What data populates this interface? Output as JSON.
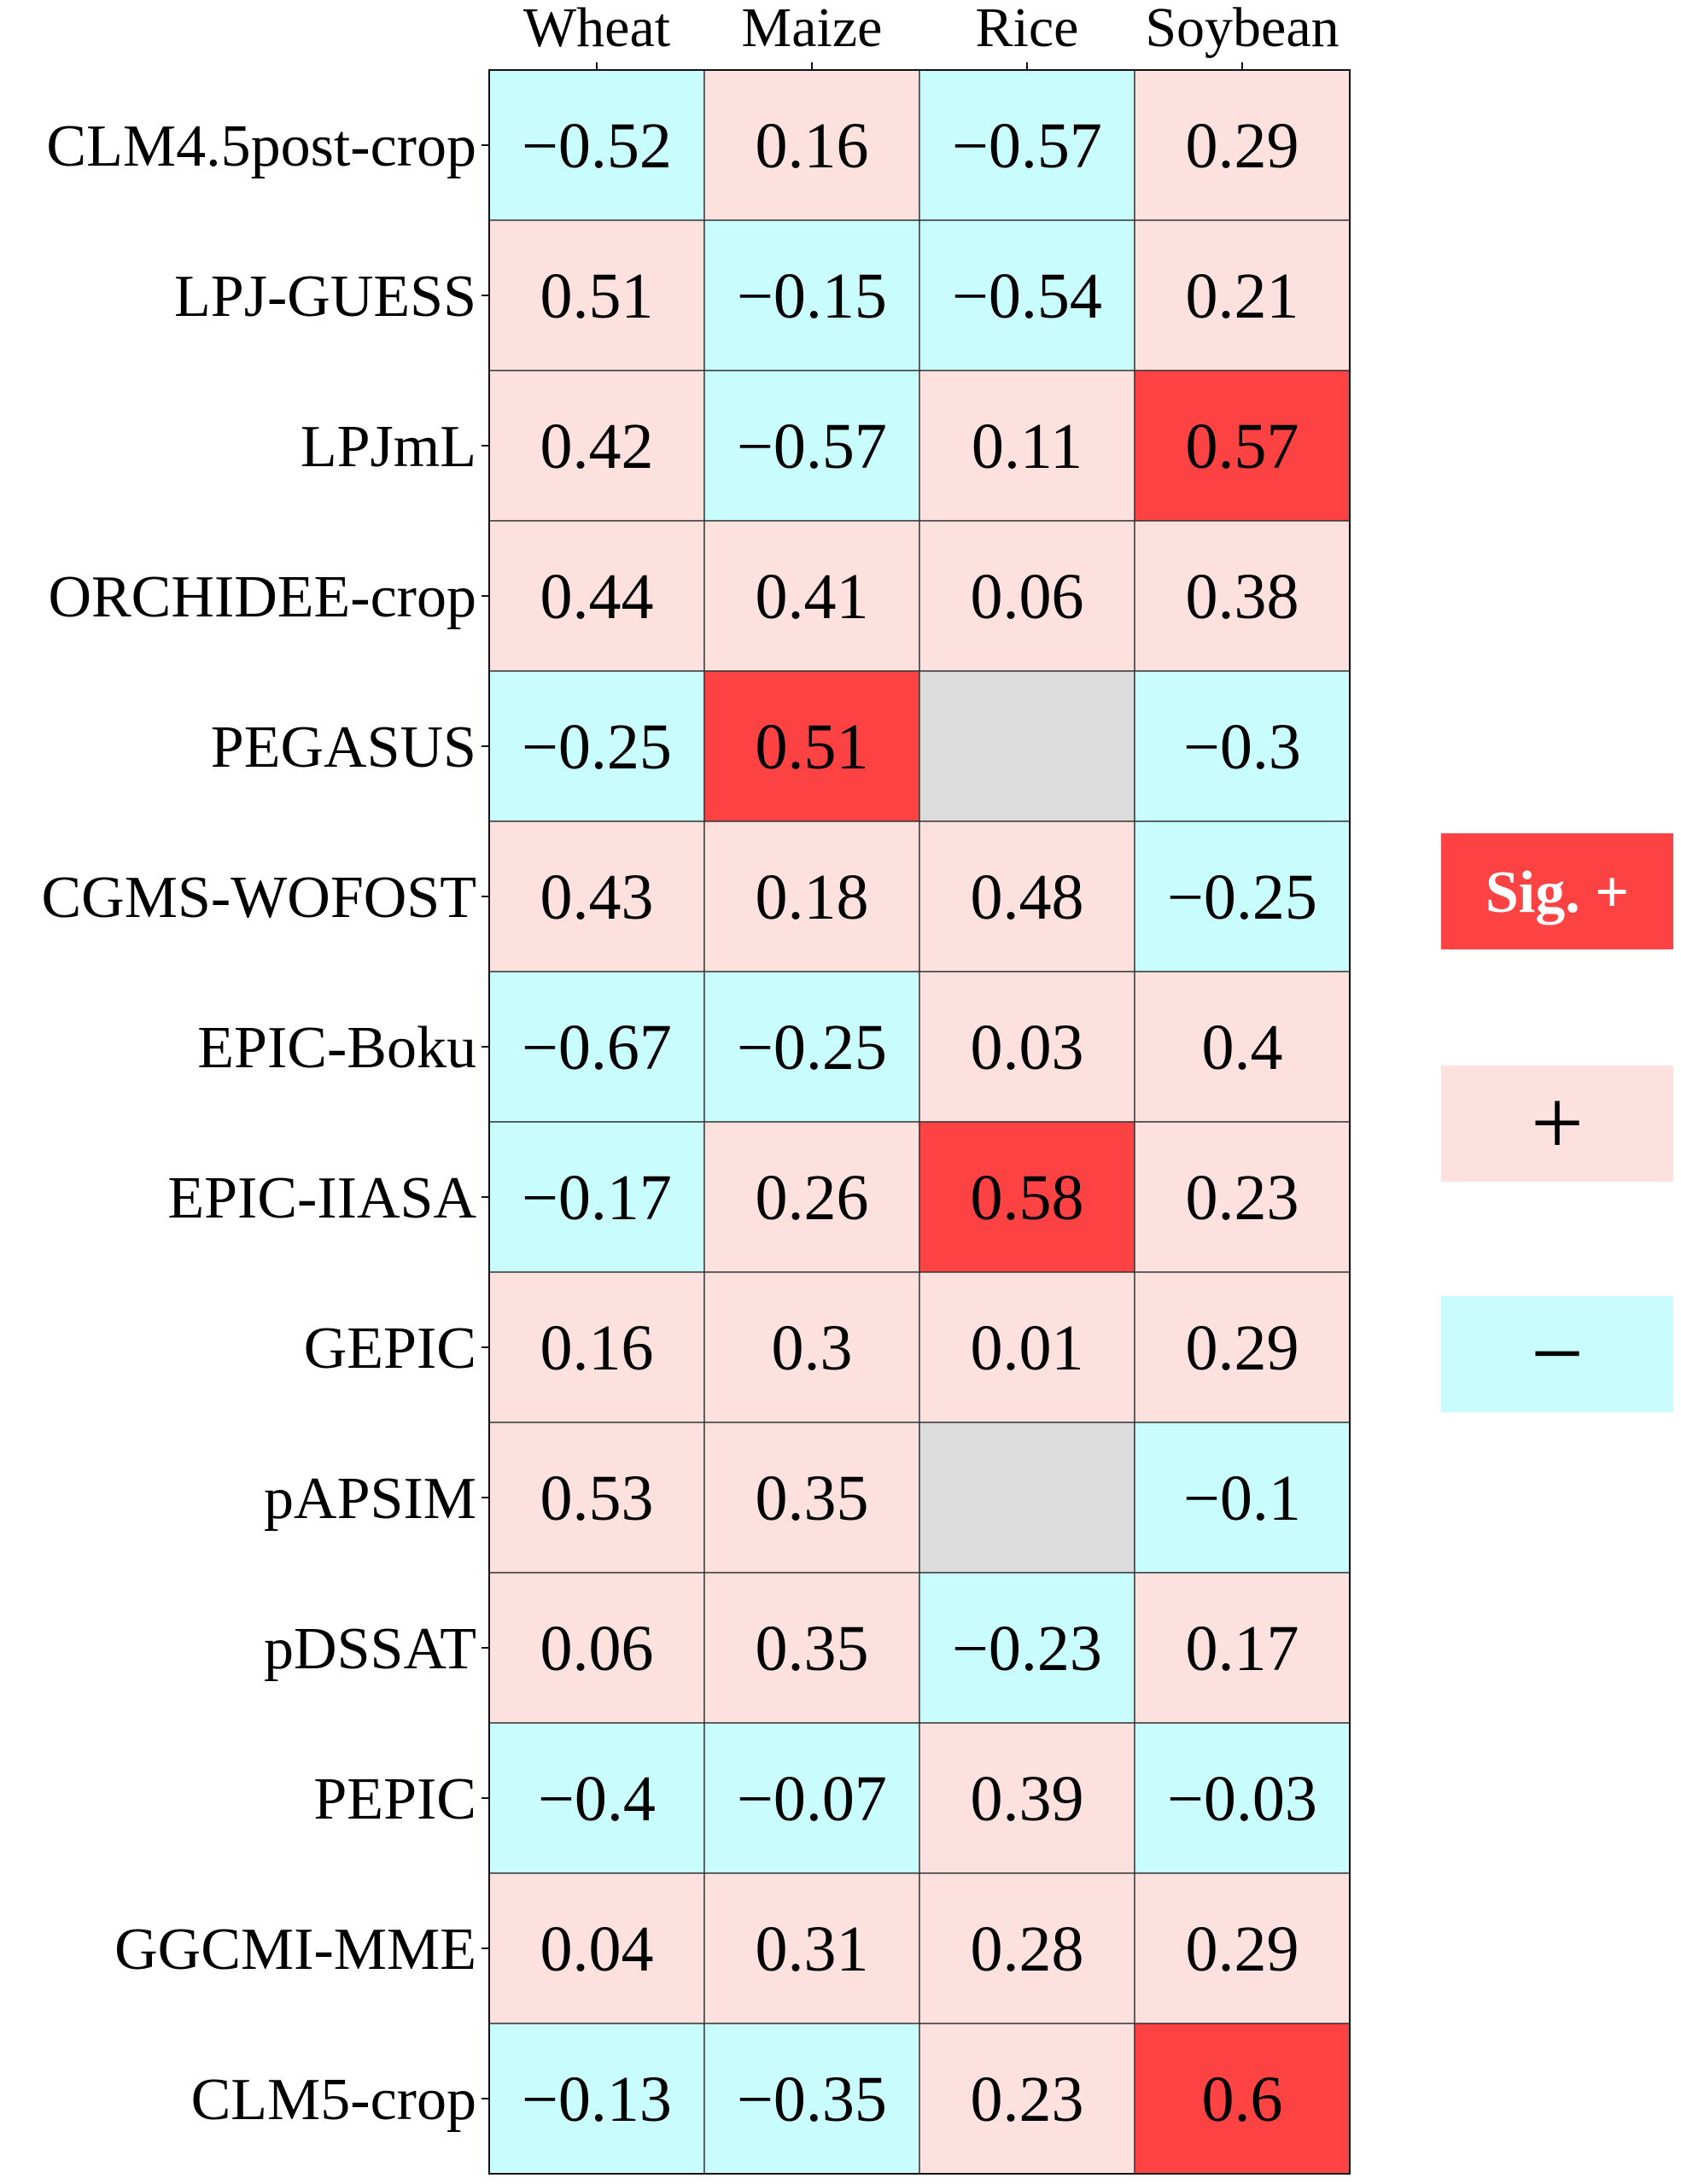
{
  "chart_data": {
    "type": "heatmap",
    "columns": [
      "Wheat",
      "Maize",
      "Rice",
      "Soybean"
    ],
    "rows": [
      "CLM4.5post-crop",
      "LPJ-GUESS",
      "LPJmL",
      "ORCHIDEE-crop",
      "PEGASUS",
      "CGMS-WOFOST",
      "EPIC-Boku",
      "EPIC-IIASA",
      "GEPIC",
      "pAPSIM",
      "pDSSAT",
      "PEPIC",
      "GGCMI-MME",
      "CLM5-crop"
    ],
    "values": [
      [
        "−0.52",
        "0.16",
        "−0.57",
        "0.29"
      ],
      [
        "0.51",
        "−0.15",
        "−0.54",
        "0.21"
      ],
      [
        "0.42",
        "−0.57",
        "0.11",
        "0.57"
      ],
      [
        "0.44",
        "0.41",
        "0.06",
        "0.38"
      ],
      [
        "−0.25",
        "0.51",
        null,
        "−0.3"
      ],
      [
        "0.43",
        "0.18",
        "0.48",
        "−0.25"
      ],
      [
        "−0.67",
        "−0.25",
        "0.03",
        "0.4"
      ],
      [
        "−0.17",
        "0.26",
        "0.58",
        "0.23"
      ],
      [
        "0.16",
        "0.3",
        "0.01",
        "0.29"
      ],
      [
        "0.53",
        "0.35",
        null,
        "−0.1"
      ],
      [
        "0.06",
        "0.35",
        "−0.23",
        "0.17"
      ],
      [
        "−0.4",
        "−0.07",
        "0.39",
        "−0.03"
      ],
      [
        "0.04",
        "0.31",
        "0.28",
        "0.29"
      ],
      [
        "−0.13",
        "−0.35",
        "0.23",
        "0.6"
      ]
    ],
    "categories": [
      [
        "neg",
        "pos",
        "neg",
        "pos"
      ],
      [
        "pos",
        "neg",
        "neg",
        "pos"
      ],
      [
        "pos",
        "neg",
        "pos",
        "sig"
      ],
      [
        "pos",
        "pos",
        "pos",
        "pos"
      ],
      [
        "neg",
        "sig",
        "na",
        "neg"
      ],
      [
        "pos",
        "pos",
        "pos",
        "neg"
      ],
      [
        "neg",
        "neg",
        "pos",
        "pos"
      ],
      [
        "neg",
        "pos",
        "sig",
        "pos"
      ],
      [
        "pos",
        "pos",
        "pos",
        "pos"
      ],
      [
        "pos",
        "pos",
        "na",
        "neg"
      ],
      [
        "pos",
        "pos",
        "neg",
        "pos"
      ],
      [
        "neg",
        "neg",
        "pos",
        "neg"
      ],
      [
        "pos",
        "pos",
        "pos",
        "pos"
      ],
      [
        "neg",
        "neg",
        "pos",
        "sig"
      ]
    ],
    "legend": [
      {
        "key": "sig",
        "label": "Sig. +"
      },
      {
        "key": "pos",
        "label": "+"
      },
      {
        "key": "neg",
        "label": "−"
      }
    ],
    "legend_placement": "right",
    "colors": {
      "sig": "#fc4242",
      "pos": "#fde1df",
      "neg": "#c9fcfd",
      "na": "#dcdcdc"
    }
  }
}
